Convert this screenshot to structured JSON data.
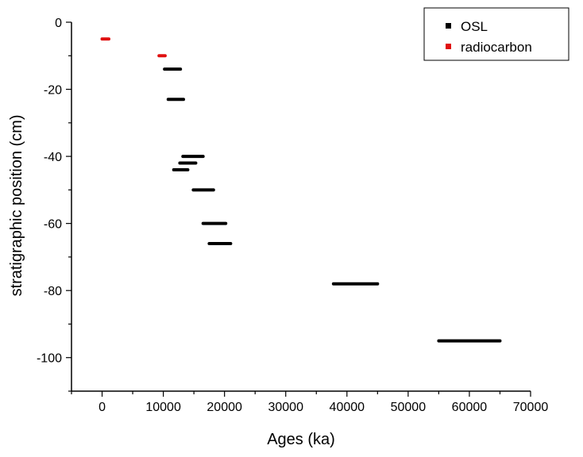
{
  "chart_data": {
    "type": "errorbar-scatter",
    "xlabel": "Ages (ka)",
    "ylabel": "stratigraphic position (cm)",
    "xlim": [
      -5000,
      70000
    ],
    "ylim": [
      -110,
      0
    ],
    "x_ticks": [
      0,
      10000,
      20000,
      30000,
      40000,
      50000,
      60000,
      70000
    ],
    "y_ticks": [
      0,
      -20,
      -40,
      -60,
      -80,
      -100
    ],
    "legend_position": "top-right",
    "grid": false,
    "series": [
      {
        "name": "OSL",
        "color": "#000000",
        "points": [
          {
            "x_min": 10200,
            "x_max": 12800,
            "y": -14
          },
          {
            "x_min": 10800,
            "x_max": 13300,
            "y": -23
          },
          {
            "x_min": 13200,
            "x_max": 16500,
            "y": -40
          },
          {
            "x_min": 12700,
            "x_max": 15300,
            "y": -42
          },
          {
            "x_min": 11700,
            "x_max": 14000,
            "y": -44
          },
          {
            "x_min": 14900,
            "x_max": 18200,
            "y": -50
          },
          {
            "x_min": 16500,
            "x_max": 20200,
            "y": -60
          },
          {
            "x_min": 17500,
            "x_max": 21000,
            "y": -66
          },
          {
            "x_min": 37800,
            "x_max": 45000,
            "y": -78
          },
          {
            "x_min": 55000,
            "x_max": 65000,
            "y": -95
          }
        ]
      },
      {
        "name": "radiocarbon",
        "color": "#e01010",
        "points": [
          {
            "x_min": 0,
            "x_max": 1100,
            "y": -5
          },
          {
            "x_min": 9300,
            "x_max": 10300,
            "y": -10
          }
        ]
      }
    ]
  }
}
